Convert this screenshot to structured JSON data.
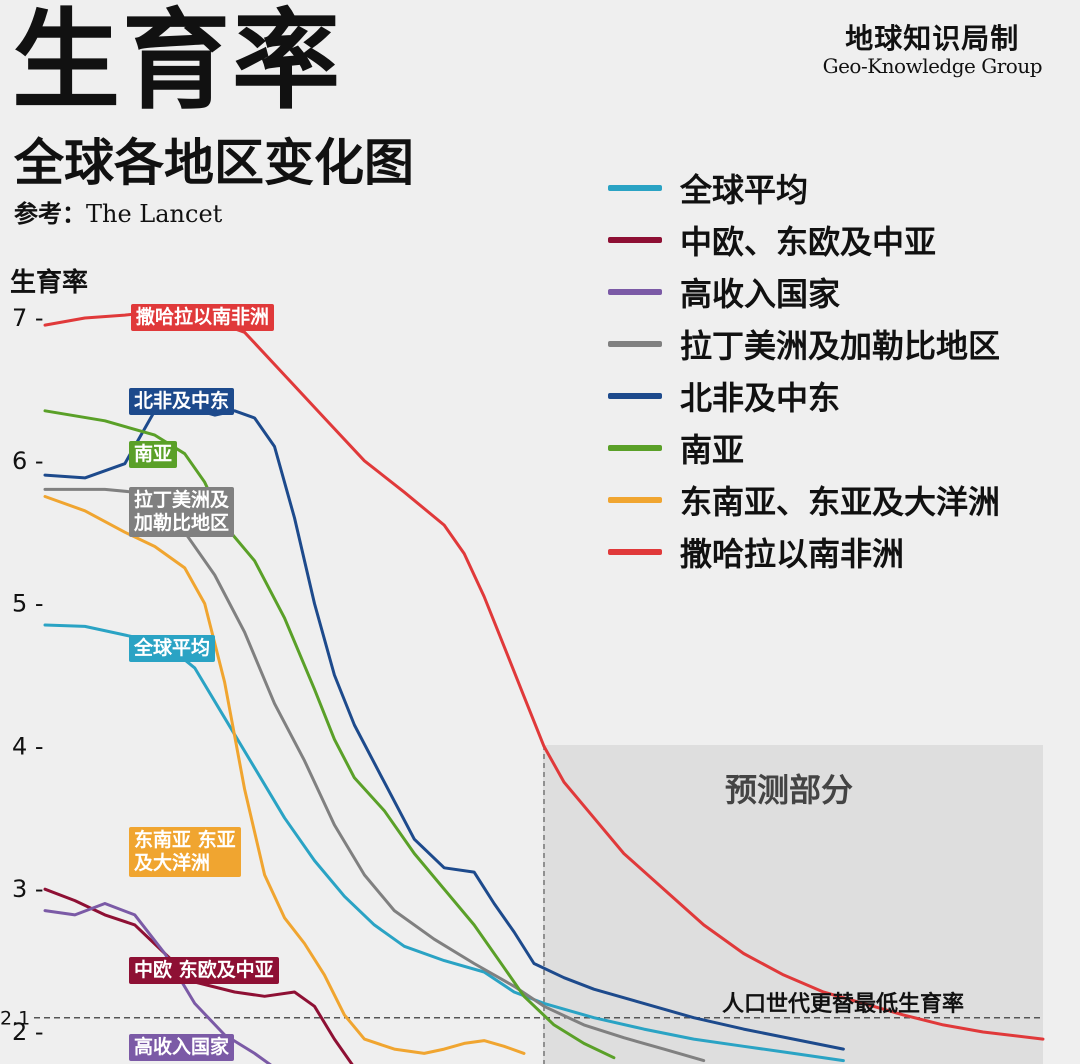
{
  "header": {
    "title": "生育率",
    "subtitle": "全球各地区变化图",
    "reference_label": "参考：",
    "reference_source": "The Lancet",
    "brand_cn": "地球知识局制",
    "brand_en": "Geo-Knowledge Group"
  },
  "chart_data": {
    "type": "line",
    "ylabel": "生育率",
    "yticks": [
      2,
      3,
      4,
      5,
      6,
      7
    ],
    "ylim": [
      1.75,
      7.35
    ],
    "xlim": [
      0,
      100
    ],
    "x_axis_shown": false,
    "legend_position": "top-right",
    "forecast_label": "预测部分",
    "forecast_start_x": 50,
    "replacement_rate": 2.1,
    "replacement_label": "人口世代更替最低生育率",
    "series": [
      {
        "name": "全球平均",
        "color": "#2aa3c4",
        "points": [
          [
            0,
            4.85
          ],
          [
            4,
            4.84
          ],
          [
            8,
            4.78
          ],
          [
            12,
            4.72
          ],
          [
            15,
            4.55
          ],
          [
            18,
            4.2
          ],
          [
            21,
            3.85
          ],
          [
            24,
            3.5
          ],
          [
            27,
            3.2
          ],
          [
            30,
            2.95
          ],
          [
            33,
            2.75
          ],
          [
            36,
            2.6
          ],
          [
            40,
            2.5
          ],
          [
            44,
            2.42
          ],
          [
            47,
            2.28
          ],
          [
            50,
            2.2
          ],
          [
            55,
            2.1
          ],
          [
            60,
            2.02
          ],
          [
            65,
            1.95
          ],
          [
            70,
            1.9
          ],
          [
            75,
            1.85
          ],
          [
            80,
            1.8
          ]
        ]
      },
      {
        "name": "中欧、东欧及中亚",
        "color": "#8e1034",
        "points": [
          [
            0,
            3.0
          ],
          [
            3,
            2.92
          ],
          [
            6,
            2.82
          ],
          [
            9,
            2.75
          ],
          [
            12,
            2.55
          ],
          [
            15,
            2.35
          ],
          [
            19,
            2.28
          ],
          [
            22,
            2.25
          ],
          [
            25,
            2.28
          ],
          [
            27,
            2.18
          ],
          [
            29,
            1.95
          ],
          [
            31,
            1.75
          ]
        ]
      },
      {
        "name": "高收入国家",
        "color": "#7b5aa6",
        "points": [
          [
            0,
            2.85
          ],
          [
            3,
            2.82
          ],
          [
            6,
            2.9
          ],
          [
            9,
            2.82
          ],
          [
            12,
            2.55
          ],
          [
            15,
            2.2
          ],
          [
            18,
            1.98
          ],
          [
            21,
            1.85
          ],
          [
            23,
            1.75
          ]
        ]
      },
      {
        "name": "拉丁美洲及加勒比地区",
        "color": "#808080",
        "points": [
          [
            0,
            5.8
          ],
          [
            6,
            5.8
          ],
          [
            9,
            5.78
          ],
          [
            12,
            5.7
          ],
          [
            14,
            5.5
          ],
          [
            17,
            5.2
          ],
          [
            20,
            4.8
          ],
          [
            23,
            4.3
          ],
          [
            26,
            3.9
          ],
          [
            29,
            3.45
          ],
          [
            32,
            3.1
          ],
          [
            35,
            2.85
          ],
          [
            39,
            2.65
          ],
          [
            43,
            2.48
          ],
          [
            47,
            2.32
          ],
          [
            50,
            2.18
          ],
          [
            54,
            2.05
          ],
          [
            58,
            1.96
          ],
          [
            62,
            1.88
          ],
          [
            66,
            1.8
          ]
        ]
      },
      {
        "name": "北非及中东",
        "color": "#1d4a8c",
        "points": [
          [
            0,
            5.9
          ],
          [
            4,
            5.88
          ],
          [
            8,
            5.98
          ],
          [
            11,
            6.35
          ],
          [
            14,
            6.38
          ],
          [
            17,
            6.32
          ],
          [
            19,
            6.35
          ],
          [
            21,
            6.3
          ],
          [
            23,
            6.1
          ],
          [
            25,
            5.6
          ],
          [
            27,
            5.0
          ],
          [
            29,
            4.5
          ],
          [
            31,
            4.15
          ],
          [
            34,
            3.75
          ],
          [
            37,
            3.35
          ],
          [
            40,
            3.15
          ],
          [
            43,
            3.12
          ],
          [
            45,
            2.9
          ],
          [
            47,
            2.7
          ],
          [
            49,
            2.48
          ],
          [
            52,
            2.38
          ],
          [
            55,
            2.3
          ],
          [
            60,
            2.2
          ],
          [
            65,
            2.1
          ],
          [
            70,
            2.02
          ],
          [
            75,
            1.95
          ],
          [
            80,
            1.88
          ]
        ]
      },
      {
        "name": "南亚",
        "color": "#5aa028",
        "points": [
          [
            0,
            6.35
          ],
          [
            6,
            6.28
          ],
          [
            11,
            6.18
          ],
          [
            14,
            6.05
          ],
          [
            16,
            5.85
          ],
          [
            18,
            5.55
          ],
          [
            21,
            5.3
          ],
          [
            24,
            4.9
          ],
          [
            27,
            4.4
          ],
          [
            29,
            4.05
          ],
          [
            31,
            3.78
          ],
          [
            34,
            3.55
          ],
          [
            37,
            3.25
          ],
          [
            40,
            3.0
          ],
          [
            43,
            2.75
          ],
          [
            46,
            2.45
          ],
          [
            48,
            2.25
          ],
          [
            51,
            2.05
          ],
          [
            54,
            1.92
          ],
          [
            57,
            1.82
          ]
        ]
      },
      {
        "name": "东南亚、东亚及大洋洲",
        "color": "#f0a530",
        "points": [
          [
            0,
            5.75
          ],
          [
            4,
            5.65
          ],
          [
            8,
            5.5
          ],
          [
            11,
            5.4
          ],
          [
            14,
            5.25
          ],
          [
            16,
            5.0
          ],
          [
            18,
            4.45
          ],
          [
            20,
            3.7
          ],
          [
            22,
            3.1
          ],
          [
            24,
            2.8
          ],
          [
            26,
            2.62
          ],
          [
            28,
            2.4
          ],
          [
            30,
            2.12
          ],
          [
            32,
            1.95
          ],
          [
            35,
            1.88
          ],
          [
            38,
            1.85
          ],
          [
            40,
            1.88
          ],
          [
            42,
            1.92
          ],
          [
            44,
            1.94
          ],
          [
            46,
            1.9
          ],
          [
            48,
            1.85
          ]
        ]
      },
      {
        "name": "撒哈拉以南非洲",
        "color": "#e0393a",
        "points": [
          [
            0,
            6.95
          ],
          [
            4,
            7.0
          ],
          [
            8,
            7.02
          ],
          [
            12,
            7.05
          ],
          [
            16,
            7.0
          ],
          [
            20,
            6.9
          ],
          [
            24,
            6.6
          ],
          [
            28,
            6.3
          ],
          [
            32,
            6.0
          ],
          [
            36,
            5.78
          ],
          [
            40,
            5.55
          ],
          [
            42,
            5.35
          ],
          [
            44,
            5.05
          ],
          [
            46,
            4.7
          ],
          [
            48,
            4.35
          ],
          [
            50,
            4.0
          ],
          [
            52,
            3.75
          ],
          [
            55,
            3.5
          ],
          [
            58,
            3.25
          ],
          [
            62,
            3.0
          ],
          [
            66,
            2.75
          ],
          [
            70,
            2.55
          ],
          [
            74,
            2.4
          ],
          [
            78,
            2.28
          ],
          [
            82,
            2.2
          ],
          [
            86,
            2.12
          ],
          [
            90,
            2.05
          ],
          [
            94,
            2.0
          ],
          [
            100,
            1.95
          ]
        ]
      }
    ],
    "inline_labels": [
      {
        "text": "撒哈拉以南非洲",
        "color": "#e0393a"
      },
      {
        "text": "北非及中东",
        "color": "#1d4a8c"
      },
      {
        "text": "南亚",
        "color": "#5aa028"
      },
      {
        "text": "拉丁美洲及",
        "text2": "加勒比地区",
        "color": "#808080"
      },
      {
        "text": "全球平均",
        "color": "#2aa3c4"
      },
      {
        "text": "东南亚 东亚",
        "text2": "及大洋洲",
        "color": "#f0a530"
      },
      {
        "text": "中欧 东欧及中亚",
        "color": "#8e1034"
      },
      {
        "text": "高收入国家",
        "color": "#7b5aa6"
      }
    ]
  }
}
